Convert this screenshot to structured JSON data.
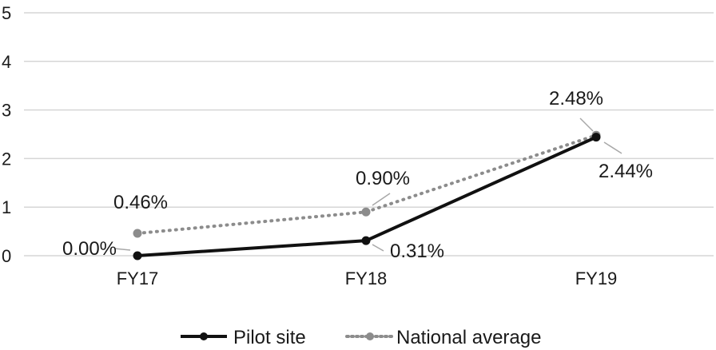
{
  "chart_data": {
    "type": "line",
    "title": "",
    "xlabel": "",
    "ylabel": "",
    "ylim": [
      0,
      5
    ],
    "yticks": [
      "0",
      "1",
      "2",
      "3",
      "4",
      "5"
    ],
    "categories": [
      "FY17",
      "FY18",
      "FY19"
    ],
    "grid": true,
    "legend_position": "bottom",
    "series": [
      {
        "name": "Pilot site",
        "values": [
          0.0,
          0.31,
          2.44
        ],
        "labels": [
          "0.00%",
          "0.31%",
          "2.44%"
        ],
        "color": "#111111",
        "style": "solid"
      },
      {
        "name": "National average",
        "values": [
          0.46,
          0.9,
          2.48
        ],
        "labels": [
          "0.46%",
          "0.90%",
          "2.48%"
        ],
        "color": "#8c8c8c",
        "style": "dotted"
      }
    ]
  }
}
